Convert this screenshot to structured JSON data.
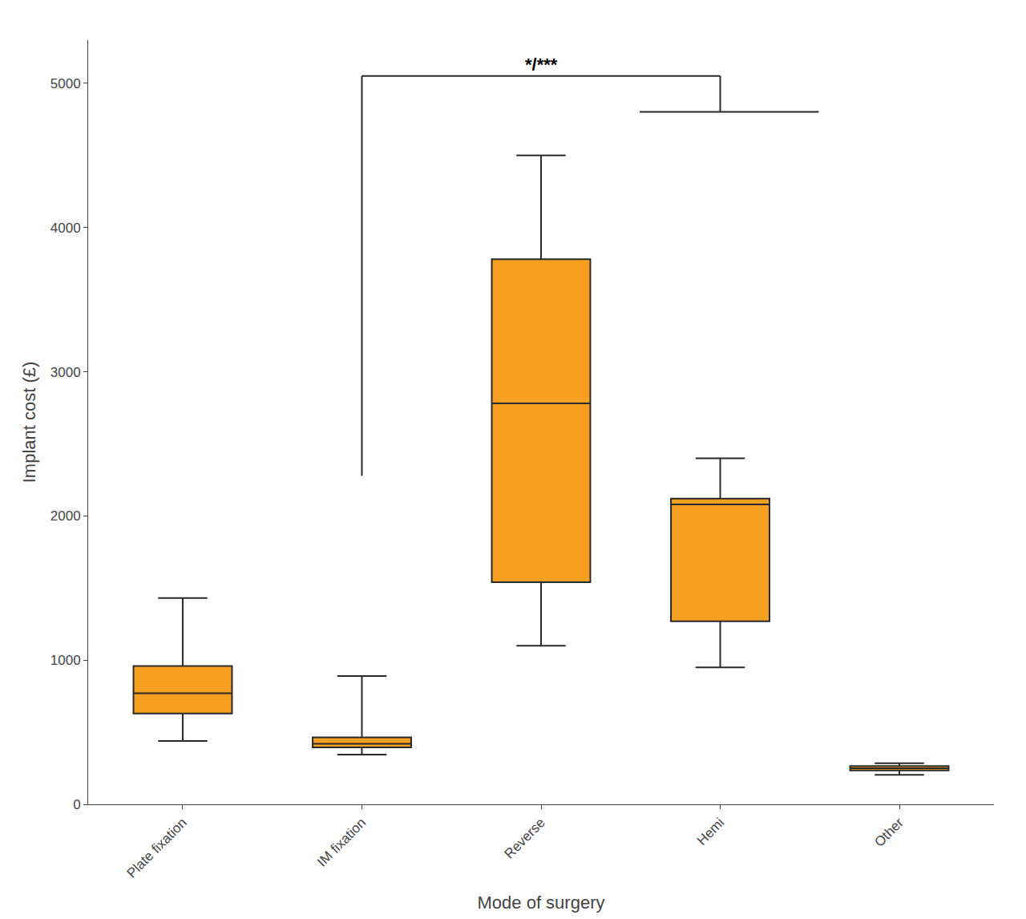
{
  "chart_data": {
    "type": "box",
    "xlabel": "Mode of surgery",
    "ylabel": "Implant cost (£)",
    "categories": [
      "Plate fixation",
      "IM fixation",
      "Reverse",
      "Hemi",
      "Other"
    ],
    "whisker_low": [
      440,
      345,
      1100,
      950,
      205
    ],
    "q1": [
      630,
      395,
      1540,
      1270,
      235
    ],
    "median": [
      770,
      420,
      2780,
      2080,
      250
    ],
    "q3": [
      960,
      465,
      3780,
      2120,
      265
    ],
    "whisker_high": [
      1430,
      890,
      4500,
      2400,
      285
    ],
    "color": "#F5A020",
    "ylim": [
      0,
      5300
    ],
    "yticks": [
      0,
      1000,
      2000,
      3000,
      4000,
      5000
    ],
    "grid": false,
    "annotations": [
      {
        "text": "*/***",
        "between": [
          "IM fixation",
          "Hemi"
        ]
      }
    ]
  }
}
